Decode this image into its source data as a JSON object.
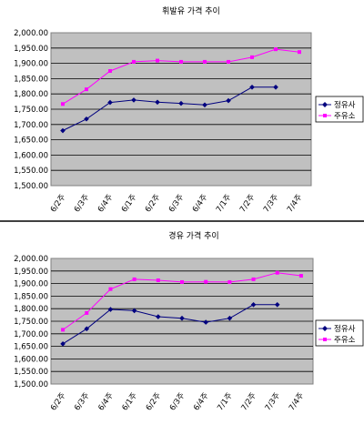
{
  "chart_data": [
    {
      "type": "line",
      "title": "휘발유 가격 추이",
      "categories": [
        "6/2주",
        "6/3주",
        "6/4주",
        "6/1주",
        "6/2주",
        "6/3주",
        "6/4주",
        "7/1주",
        "7/2주",
        "7/3주",
        "7/4주"
      ],
      "y_ticks": [
        "1,500.00",
        "1,550.00",
        "1,600.00",
        "1,650.00",
        "1,700.00",
        "1,750.00",
        "1,800.00",
        "1,850.00",
        "1,900.00",
        "1,950.00",
        "2,000.00"
      ],
      "ylim": [
        1500,
        2000
      ],
      "grid": true,
      "legend_position": "right",
      "series": [
        {
          "name": "정유사",
          "color": "#00007f",
          "values": [
            1680,
            1718,
            1772,
            1780,
            1773,
            1769,
            1764,
            1778,
            1822,
            1822,
            null
          ]
        },
        {
          "name": "주유소",
          "color": "#ff00ff",
          "values": [
            1767,
            1815,
            1875,
            1905,
            1909,
            1905,
            1905,
            1905,
            1920,
            1946,
            1937
          ]
        }
      ]
    },
    {
      "type": "line",
      "title": "경유 가격 추이",
      "categories": [
        "6/2주",
        "6/3주",
        "6/4주",
        "6/1주",
        "6/2주",
        "6/3주",
        "6/4주",
        "7/1주",
        "7/2주",
        "7/3주",
        "7/4주"
      ],
      "y_ticks": [
        "1,500.00",
        "1,550.00",
        "1,600.00",
        "1,650.00",
        "1,700.00",
        "1,750.00",
        "1,800.00",
        "1,850.00",
        "1,900.00",
        "1,950.00",
        "2,000.00"
      ],
      "ylim": [
        1500,
        2000
      ],
      "grid": true,
      "legend_position": "right",
      "series": [
        {
          "name": "정유사",
          "color": "#00007f",
          "values": [
            1660,
            1720,
            1797,
            1792,
            1768,
            1762,
            1746,
            1762,
            1816,
            1816,
            null
          ]
        },
        {
          "name": "주유소",
          "color": "#ff00ff",
          "values": [
            1716,
            1783,
            1878,
            1917,
            1913,
            1906,
            1907,
            1906,
            1917,
            1943,
            1931
          ]
        }
      ]
    }
  ]
}
